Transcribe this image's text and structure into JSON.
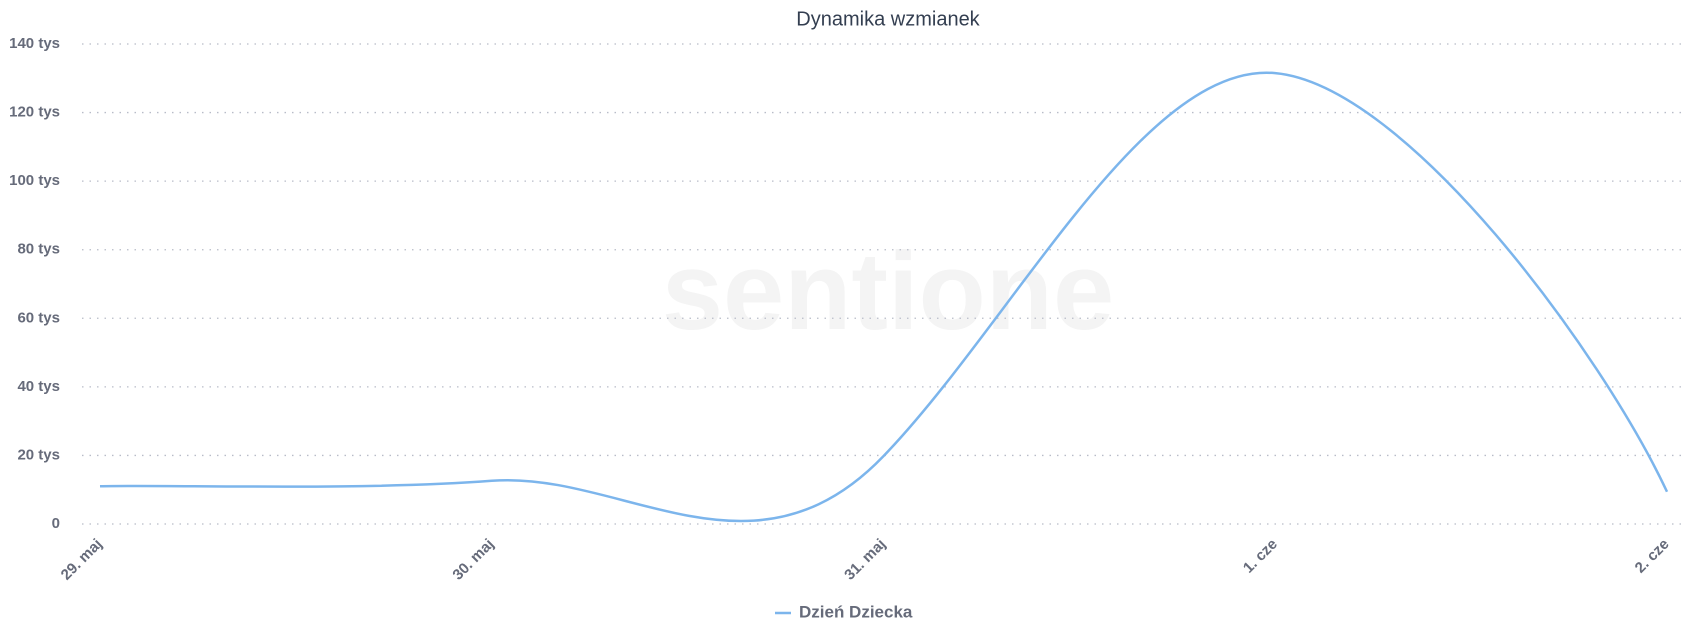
{
  "chart_data": {
    "type": "line",
    "title": "Dynamika wzmianek",
    "watermark": "sentione",
    "categories": [
      "29. maj",
      "30. maj",
      "31. maj",
      "1. cze",
      "2. cze"
    ],
    "series": [
      {
        "name": "Dzień Dziecka",
        "color": "#7cb5ec",
        "values": [
          11000,
          12600,
          19800,
          131500,
          9400
        ]
      }
    ],
    "ylim": [
      0,
      140000
    ],
    "yticks": [
      0,
      {
        "value": 20000,
        "label": "20 tys"
      },
      {
        "value": 40000,
        "label": "40 tys"
      },
      {
        "value": 60000,
        "label": "60 tys"
      },
      {
        "value": 80000,
        "label": "80 tys"
      },
      {
        "value": 100000,
        "label": "100 tys"
      },
      {
        "value": 120000,
        "label": "120 tys"
      },
      {
        "value": 140000,
        "label": "140 tys"
      }
    ],
    "grid": true,
    "legend": "bottom"
  }
}
